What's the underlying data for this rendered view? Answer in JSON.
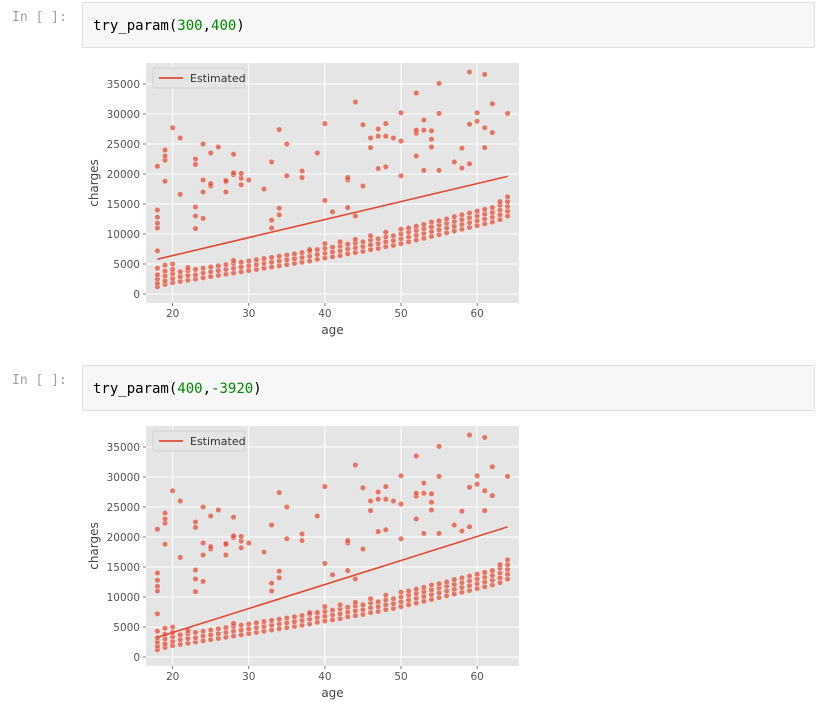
{
  "cells": [
    {
      "prompt": "In [ ]:",
      "code": {
        "fn": "try_param(",
        "arg1": "300",
        "comma": ",",
        "sign": "",
        "arg2": "400",
        "close": ")"
      }
    },
    {
      "prompt": "In [ ]:",
      "code": {
        "fn": "try_param(",
        "arg1": "400",
        "comma": ",",
        "sign": "-",
        "arg2": "3920",
        "close": ")"
      }
    }
  ],
  "chart_data": [
    {
      "type": "scatter",
      "title": "",
      "xlabel": "age",
      "ylabel": "charges",
      "xlim": [
        16.5,
        65.5
      ],
      "ylim": [
        -1500,
        38500
      ],
      "xticks": [
        20,
        30,
        40,
        50,
        60
      ],
      "yticks": [
        0,
        5000,
        10000,
        15000,
        20000,
        25000,
        30000,
        35000
      ],
      "grid": true,
      "legend": {
        "position": "top-left",
        "entries": [
          "Estimated"
        ]
      },
      "colors": {
        "points": "#e24a33",
        "line": "#e24a33",
        "background": "#e5e5e5"
      },
      "line": {
        "name": "Estimated",
        "x": [
          18,
          64
        ],
        "y": [
          5800,
          19600
        ]
      }
    },
    {
      "type": "scatter",
      "title": "",
      "xlabel": "age",
      "ylabel": "charges",
      "xlim": [
        16.5,
        65.5
      ],
      "ylim": [
        -1500,
        38500
      ],
      "xticks": [
        20,
        30,
        40,
        50,
        60
      ],
      "yticks": [
        0,
        5000,
        10000,
        15000,
        20000,
        25000,
        30000,
        35000
      ],
      "grid": true,
      "legend": {
        "position": "top-left",
        "entries": [
          "Estimated"
        ]
      },
      "colors": {
        "points": "#e24a33",
        "line": "#e24a33",
        "background": "#e5e5e5"
      },
      "line": {
        "name": "Estimated",
        "x": [
          18,
          64
        ],
        "y": [
          3280,
          21680
        ]
      }
    }
  ],
  "scatter_points": [
    [
      18,
      1200
    ],
    [
      18,
      1800
    ],
    [
      18,
      2500
    ],
    [
      18,
      3200
    ],
    [
      18,
      4300
    ],
    [
      18,
      7200
    ],
    [
      18,
      11000
    ],
    [
      18,
      11800
    ],
    [
      18,
      12800
    ],
    [
      18,
      14000
    ],
    [
      18,
      21300
    ],
    [
      19,
      1600
    ],
    [
      19,
      2200
    ],
    [
      19,
      3000
    ],
    [
      19,
      3800
    ],
    [
      19,
      4800
    ],
    [
      19,
      18800
    ],
    [
      19,
      22300
    ],
    [
      19,
      23000
    ],
    [
      19,
      24000
    ],
    [
      20,
      1900
    ],
    [
      20,
      2600
    ],
    [
      20,
      3400
    ],
    [
      20,
      4100
    ],
    [
      20,
      5000
    ],
    [
      20,
      27700
    ],
    [
      21,
      2100
    ],
    [
      21,
      2900
    ],
    [
      21,
      3700
    ],
    [
      21,
      16600
    ],
    [
      21,
      26000
    ],
    [
      22,
      2300
    ],
    [
      22,
      3100
    ],
    [
      22,
      3900
    ],
    [
      22,
      4400
    ],
    [
      23,
      2500
    ],
    [
      23,
      3200
    ],
    [
      23,
      4100
    ],
    [
      23,
      10900
    ],
    [
      23,
      13000
    ],
    [
      23,
      14500
    ],
    [
      23,
      21600
    ],
    [
      23,
      22500
    ],
    [
      24,
      2700
    ],
    [
      24,
      3500
    ],
    [
      24,
      4300
    ],
    [
      24,
      12600
    ],
    [
      24,
      17000
    ],
    [
      24,
      19000
    ],
    [
      24,
      25000
    ],
    [
      25,
      2900
    ],
    [
      25,
      3700
    ],
    [
      25,
      4500
    ],
    [
      25,
      18000
    ],
    [
      25,
      18400
    ],
    [
      25,
      23500
    ],
    [
      26,
      3100
    ],
    [
      26,
      3900
    ],
    [
      26,
      4700
    ],
    [
      26,
      24500
    ],
    [
      27,
      3300
    ],
    [
      27,
      4100
    ],
    [
      27,
      4900
    ],
    [
      27,
      17000
    ],
    [
      27,
      18700
    ],
    [
      27,
      18900
    ],
    [
      28,
      3500
    ],
    [
      28,
      4300
    ],
    [
      28,
      5100
    ],
    [
      28,
      5600
    ],
    [
      28,
      19900
    ],
    [
      28,
      20200
    ],
    [
      28,
      23300
    ],
    [
      29,
      3700
    ],
    [
      29,
      4500
    ],
    [
      29,
      5300
    ],
    [
      29,
      18200
    ],
    [
      29,
      19300
    ],
    [
      29,
      20100
    ],
    [
      30,
      3900
    ],
    [
      30,
      4700
    ],
    [
      30,
      5500
    ],
    [
      30,
      19000
    ],
    [
      31,
      4100
    ],
    [
      31,
      4900
    ],
    [
      31,
      5700
    ],
    [
      32,
      4300
    ],
    [
      32,
      5100
    ],
    [
      32,
      5900
    ],
    [
      32,
      17500
    ],
    [
      33,
      4500
    ],
    [
      33,
      5300
    ],
    [
      33,
      6100
    ],
    [
      33,
      11000
    ],
    [
      33,
      12300
    ],
    [
      33,
      22000
    ],
    [
      34,
      4700
    ],
    [
      34,
      5500
    ],
    [
      34,
      6300
    ],
    [
      34,
      13200
    ],
    [
      34,
      14300
    ],
    [
      34,
      27400
    ],
    [
      35,
      4900
    ],
    [
      35,
      5700
    ],
    [
      35,
      6500
    ],
    [
      35,
      19700
    ],
    [
      35,
      25000
    ],
    [
      36,
      5100
    ],
    [
      36,
      5900
    ],
    [
      36,
      6700
    ],
    [
      37,
      5300
    ],
    [
      37,
      6100
    ],
    [
      37,
      6900
    ],
    [
      37,
      19400
    ],
    [
      37,
      20500
    ],
    [
      38,
      5500
    ],
    [
      38,
      6300
    ],
    [
      38,
      7100
    ],
    [
      38,
      7400
    ],
    [
      39,
      5800
    ],
    [
      39,
      6600
    ],
    [
      39,
      7400
    ],
    [
      39,
      23500
    ],
    [
      40,
      6000
    ],
    [
      40,
      6800
    ],
    [
      40,
      7600
    ],
    [
      40,
      8400
    ],
    [
      40,
      15600
    ],
    [
      40,
      28400
    ],
    [
      41,
      6200
    ],
    [
      41,
      7000
    ],
    [
      41,
      7800
    ],
    [
      41,
      13700
    ],
    [
      42,
      6400
    ],
    [
      42,
      7200
    ],
    [
      42,
      8000
    ],
    [
      42,
      8700
    ],
    [
      43,
      6700
    ],
    [
      43,
      7500
    ],
    [
      43,
      8300
    ],
    [
      43,
      14400
    ],
    [
      43,
      19000
    ],
    [
      43,
      19400
    ],
    [
      44,
      6900
    ],
    [
      44,
      7700
    ],
    [
      44,
      8500
    ],
    [
      44,
      9100
    ],
    [
      44,
      13000
    ],
    [
      44,
      32000
    ],
    [
      45,
      7100
    ],
    [
      45,
      7900
    ],
    [
      45,
      8700
    ],
    [
      45,
      18000
    ],
    [
      45,
      28200
    ],
    [
      46,
      7400
    ],
    [
      46,
      8200
    ],
    [
      46,
      9000
    ],
    [
      46,
      9700
    ],
    [
      46,
      24400
    ],
    [
      46,
      26000
    ],
    [
      47,
      7600
    ],
    [
      47,
      8400
    ],
    [
      47,
      9200
    ],
    [
      47,
      20900
    ],
    [
      47,
      26300
    ],
    [
      47,
      27500
    ],
    [
      48,
      7900
    ],
    [
      48,
      8700
    ],
    [
      48,
      9500
    ],
    [
      48,
      10300
    ],
    [
      48,
      21200
    ],
    [
      48,
      26300
    ],
    [
      48,
      28400
    ],
    [
      49,
      8100
    ],
    [
      49,
      8900
    ],
    [
      49,
      9700
    ],
    [
      49,
      26000
    ],
    [
      50,
      8400
    ],
    [
      50,
      9200
    ],
    [
      50,
      10000
    ],
    [
      50,
      10800
    ],
    [
      50,
      19700
    ],
    [
      50,
      25500
    ],
    [
      50,
      30200
    ],
    [
      51,
      8700
    ],
    [
      51,
      9500
    ],
    [
      51,
      10300
    ],
    [
      51,
      11000
    ],
    [
      52,
      9000
    ],
    [
      52,
      9800
    ],
    [
      52,
      10600
    ],
    [
      52,
      11300
    ],
    [
      52,
      23000
    ],
    [
      52,
      26800
    ],
    [
      52,
      33500
    ],
    [
      52,
      27300
    ],
    [
      53,
      9300
    ],
    [
      53,
      10100
    ],
    [
      53,
      10900
    ],
    [
      53,
      11600
    ],
    [
      53,
      20600
    ],
    [
      53,
      27300
    ],
    [
      53,
      29000
    ],
    [
      54,
      9600
    ],
    [
      54,
      10400
    ],
    [
      54,
      11200
    ],
    [
      54,
      12000
    ],
    [
      54,
      24500
    ],
    [
      54,
      25800
    ],
    [
      54,
      27200
    ],
    [
      55,
      9900
    ],
    [
      55,
      10700
    ],
    [
      55,
      11500
    ],
    [
      55,
      12200
    ],
    [
      55,
      20600
    ],
    [
      55,
      30100
    ],
    [
      55,
      35100
    ],
    [
      56,
      10200
    ],
    [
      56,
      11000
    ],
    [
      56,
      11800
    ],
    [
      56,
      12500
    ],
    [
      57,
      10500
    ],
    [
      57,
      11300
    ],
    [
      57,
      12100
    ],
    [
      57,
      12900
    ],
    [
      57,
      22000
    ],
    [
      58,
      10800
    ],
    [
      58,
      11600
    ],
    [
      58,
      12400
    ],
    [
      58,
      13200
    ],
    [
      58,
      21000
    ],
    [
      58,
      24300
    ],
    [
      59,
      11100
    ],
    [
      59,
      11900
    ],
    [
      59,
      12700
    ],
    [
      59,
      13500
    ],
    [
      59,
      21700
    ],
    [
      59,
      28300
    ],
    [
      59,
      37000
    ],
    [
      60,
      11400
    ],
    [
      60,
      12200
    ],
    [
      60,
      13000
    ],
    [
      60,
      13800
    ],
    [
      60,
      28800
    ],
    [
      60,
      30200
    ],
    [
      61,
      11700
    ],
    [
      61,
      12500
    ],
    [
      61,
      13300
    ],
    [
      61,
      14100
    ],
    [
      61,
      24400
    ],
    [
      61,
      27700
    ],
    [
      61,
      36600
    ],
    [
      62,
      12000
    ],
    [
      62,
      12800
    ],
    [
      62,
      13600
    ],
    [
      62,
      14400
    ],
    [
      62,
      26900
    ],
    [
      62,
      31700
    ],
    [
      63,
      12400
    ],
    [
      63,
      13200
    ],
    [
      63,
      14000
    ],
    [
      63,
      14800
    ],
    [
      63,
      15400
    ],
    [
      64,
      13000
    ],
    [
      64,
      13800
    ],
    [
      64,
      14600
    ],
    [
      64,
      15400
    ],
    [
      64,
      16200
    ],
    [
      64,
      30100
    ]
  ]
}
